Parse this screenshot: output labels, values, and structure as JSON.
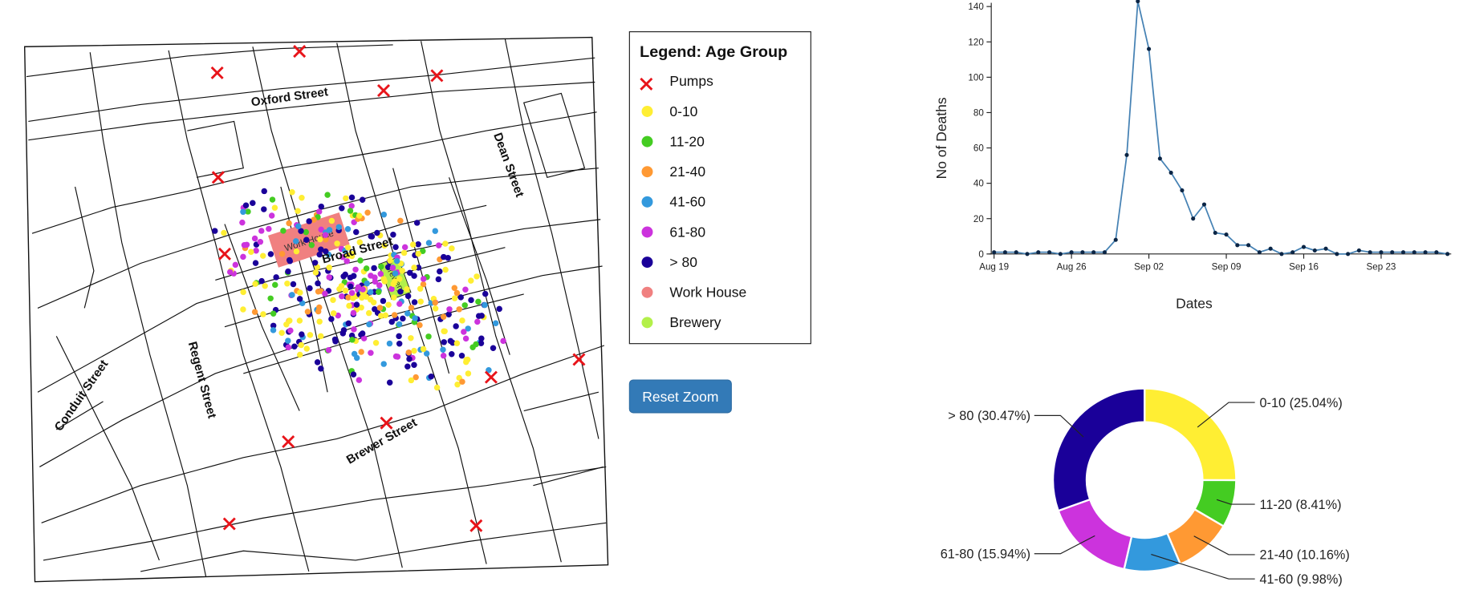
{
  "legend": {
    "title": "Legend: Age Group",
    "items": [
      {
        "label": "Pumps",
        "color": "#e8141a"
      },
      {
        "label": "0-10",
        "color": "#ffee33"
      },
      {
        "label": "11-20",
        "color": "#44cc22"
      },
      {
        "label": "21-40",
        "color": "#ff9933"
      },
      {
        "label": "41-60",
        "color": "#3399dd"
      },
      {
        "label": "61-80",
        "color": "#cc33dd"
      },
      {
        "label": "> 80",
        "color": "#1a0099"
      },
      {
        "label": "Work House",
        "color": "#f08080"
      },
      {
        "label": "Brewery",
        "color": "#b3f04a"
      }
    ]
  },
  "map": {
    "streets": [
      "Oxford Street",
      "Dean Street",
      "Broad Street",
      "Regent Street",
      "Conduit Street",
      "Brewer Street"
    ],
    "buildings": [
      "Work House",
      "Brewery"
    ]
  },
  "button": "Reset Zoom",
  "chart_data": [
    {
      "type": "line",
      "x_label": "Dates",
      "y_label": "No of Deaths",
      "color": "#4682b4",
      "categories": [
        "Aug 19",
        null,
        null,
        null,
        null,
        null,
        null,
        "Aug 26",
        null,
        null,
        null,
        null,
        null,
        null,
        "Sep 02",
        null,
        null,
        null,
        null,
        null,
        null,
        "Sep 09",
        null,
        null,
        null,
        null,
        null,
        null,
        "Sep 16",
        null,
        null,
        null,
        null,
        null,
        null,
        "Sep 23",
        null,
        null,
        null,
        null,
        null,
        null
      ],
      "values": [
        1,
        1,
        1,
        0,
        1,
        1,
        0,
        1,
        1,
        1,
        1,
        8,
        56,
        143,
        116,
        54,
        46,
        36,
        20,
        28,
        12,
        11,
        5,
        5,
        1,
        3,
        0,
        1,
        4,
        2,
        3,
        0,
        0,
        2,
        1,
        1,
        1,
        1,
        1,
        1,
        1,
        0
      ],
      "ylim": [
        0,
        140
      ],
      "yticks": [
        0,
        20,
        40,
        60,
        80,
        100,
        120,
        140
      ]
    },
    {
      "type": "pie",
      "values": [
        25.04,
        8.41,
        10.16,
        9.98,
        15.94,
        30.47
      ],
      "value_labels": [
        "0-10 (25.04%)",
        "11-20 (8.41%)",
        "21-40 (10.16%)",
        "41-60 (9.98%)",
        "61-80 (15.94%)",
        "> 80 (30.47%)"
      ],
      "colors": [
        "#ffee33",
        "#44cc22",
        "#ff9933",
        "#3399dd",
        "#cc33dd",
        "#1a0099"
      ]
    }
  ]
}
